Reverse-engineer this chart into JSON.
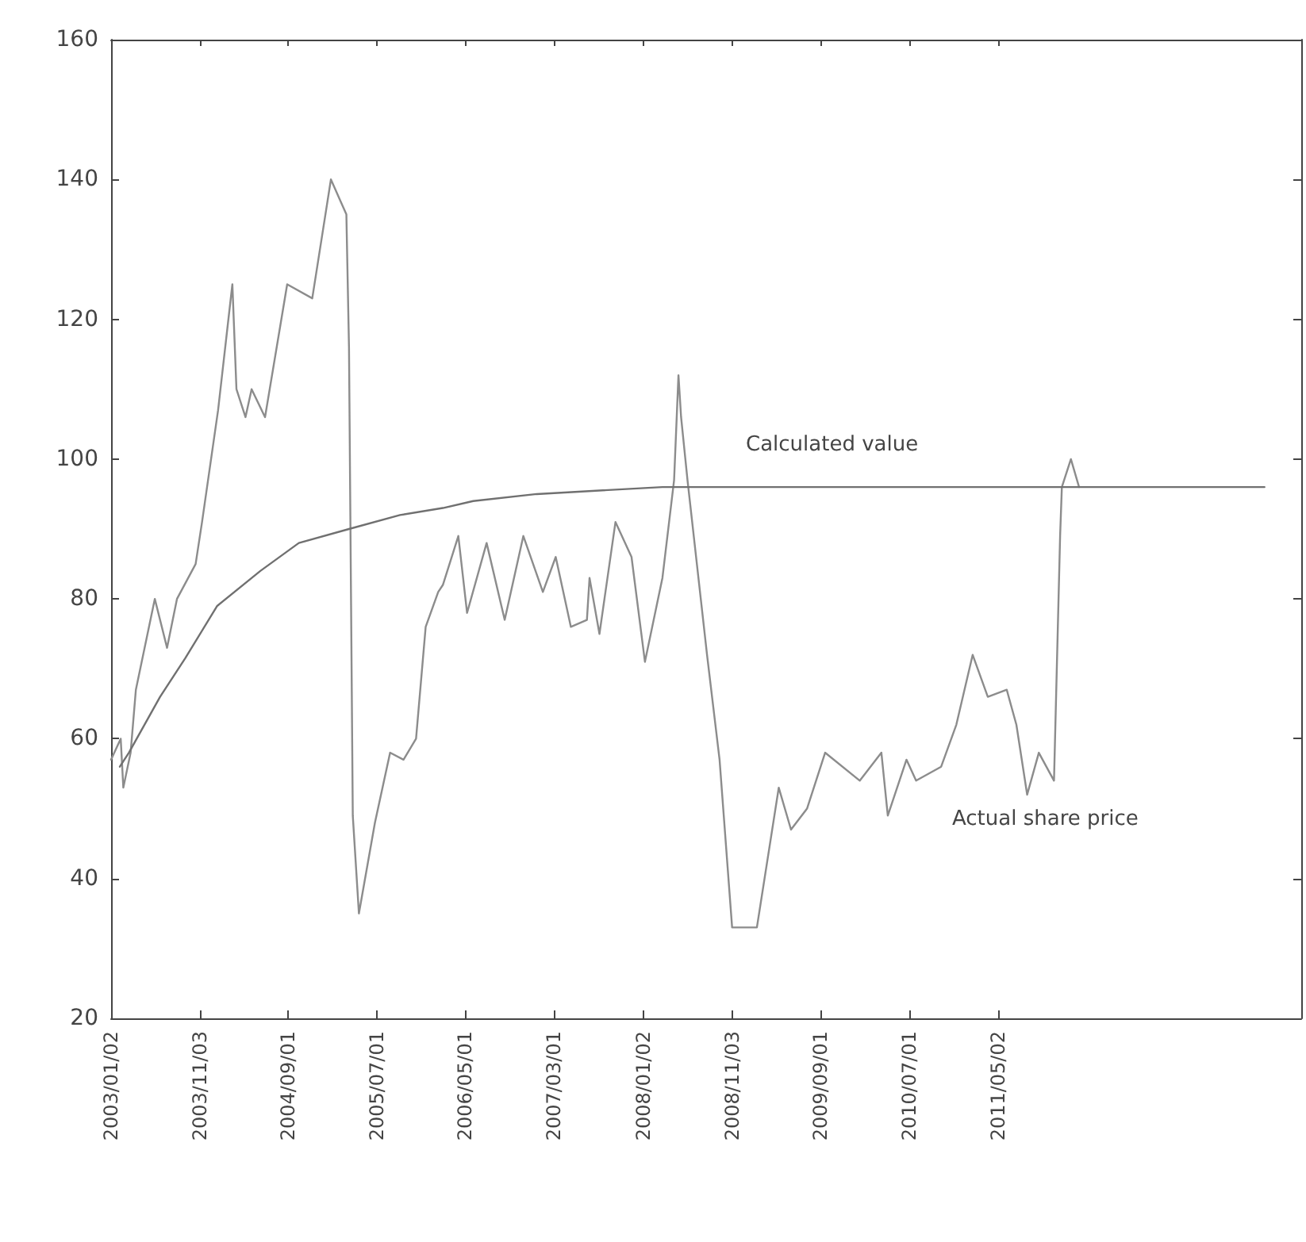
{
  "chart_data": {
    "type": "line",
    "xlim": [
      "2003-01-02",
      "2014-03-07"
    ],
    "xticks": [
      {
        "value": "2003-01-02",
        "label": "2003/01/02"
      },
      {
        "value": "2003-11-03",
        "label": "2003/11/03"
      },
      {
        "value": "2004-09-01",
        "label": "2004/09/01"
      },
      {
        "value": "2005-07-01",
        "label": "2005/07/01"
      },
      {
        "value": "2006-05-01",
        "label": "2006/05/01"
      },
      {
        "value": "2007-03-01",
        "label": "2007/03/01"
      },
      {
        "value": "2008-01-02",
        "label": "2008/01/02"
      },
      {
        "value": "2008-11-03",
        "label": "2008/11/03"
      },
      {
        "value": "2009-09-01",
        "label": "2009/09/01"
      },
      {
        "value": "2010-07-01",
        "label": "2010/07/01"
      },
      {
        "value": "2011-05-02",
        "label": "2011/05/02"
      }
    ],
    "ylim": [
      20,
      160
    ],
    "yticks": [
      20,
      40,
      60,
      80,
      100,
      120,
      140,
      160
    ],
    "grid": false,
    "marker": "none",
    "line_style": "solid",
    "series": [
      {
        "name": "Actual share price",
        "color": "#8c8c8c",
        "x": [
          "2003-01-02",
          "2003-02-04",
          "2003-02-13",
          "2003-03-10",
          "2003-03-28",
          "2003-06-01",
          "2003-07-13",
          "2003-08-16",
          "2003-10-19",
          "2003-11-10",
          "2004-01-04",
          "2004-02-22",
          "2004-03-07",
          "2004-04-07",
          "2004-04-28",
          "2004-06-13",
          "2004-08-28",
          "2004-11-22",
          "2005-01-25",
          "2005-03-19",
          "2005-03-28",
          "2005-04-10",
          "2005-05-01",
          "2005-06-25",
          "2005-08-16",
          "2005-10-01",
          "2005-11-13",
          "2005-12-16",
          "2006-01-28",
          "2006-02-13",
          "2006-04-07",
          "2006-05-07",
          "2006-07-13",
          "2006-09-13",
          "2006-11-16",
          "2007-01-22",
          "2007-03-07",
          "2007-04-28",
          "2007-06-22",
          "2007-07-01",
          "2007-08-04",
          "2007-09-28",
          "2007-11-22",
          "2008-01-07",
          "2008-03-07",
          "2008-04-16",
          "2008-05-01",
          "2008-05-10",
          "2008-06-01",
          "2008-08-07",
          "2008-09-19",
          "2008-11-01",
          "2009-01-25",
          "2009-04-10",
          "2009-05-22",
          "2009-07-16",
          "2009-09-16",
          "2010-01-13",
          "2010-03-28",
          "2010-04-19",
          "2010-06-22",
          "2010-07-25",
          "2010-10-19",
          "2010-12-10",
          "2011-02-04",
          "2011-03-28",
          "2011-06-01",
          "2011-07-04",
          "2011-08-10",
          "2011-09-19",
          "2011-11-10",
          "2011-12-01",
          "2011-12-07",
          "2012-01-07",
          "2012-02-04"
        ],
        "values": [
          57,
          60,
          53,
          58,
          67,
          80,
          73,
          80,
          85,
          91,
          107,
          125,
          110,
          106,
          110,
          106,
          125,
          123,
          140,
          135,
          116,
          49,
          35,
          48,
          58,
          57,
          60,
          76,
          81,
          82,
          89,
          78,
          88,
          77,
          89,
          81,
          86,
          76,
          77,
          83,
          75,
          91,
          86,
          71,
          83,
          97,
          112,
          106,
          97,
          72,
          57,
          33,
          33,
          53,
          47,
          50,
          58,
          54,
          58,
          49,
          57,
          54,
          56,
          62,
          72,
          66,
          67,
          62,
          52,
          58,
          54,
          89,
          96,
          100,
          96
        ]
      },
      {
        "name": "Calculated value",
        "color": "#707070",
        "x": [
          "2003-02-01",
          "2003-03-04",
          "2003-06-19",
          "2003-09-13",
          "2004-01-01",
          "2004-05-28",
          "2004-10-07",
          "2005-03-28",
          "2005-09-19",
          "2006-02-13",
          "2006-05-28",
          "2007-01-01",
          "2008-03-07",
          "2013-11-01"
        ],
        "values": [
          56,
          58,
          66,
          71.5,
          79,
          84,
          88,
          90,
          92,
          93,
          94,
          95,
          96,
          96
        ]
      }
    ]
  }
}
